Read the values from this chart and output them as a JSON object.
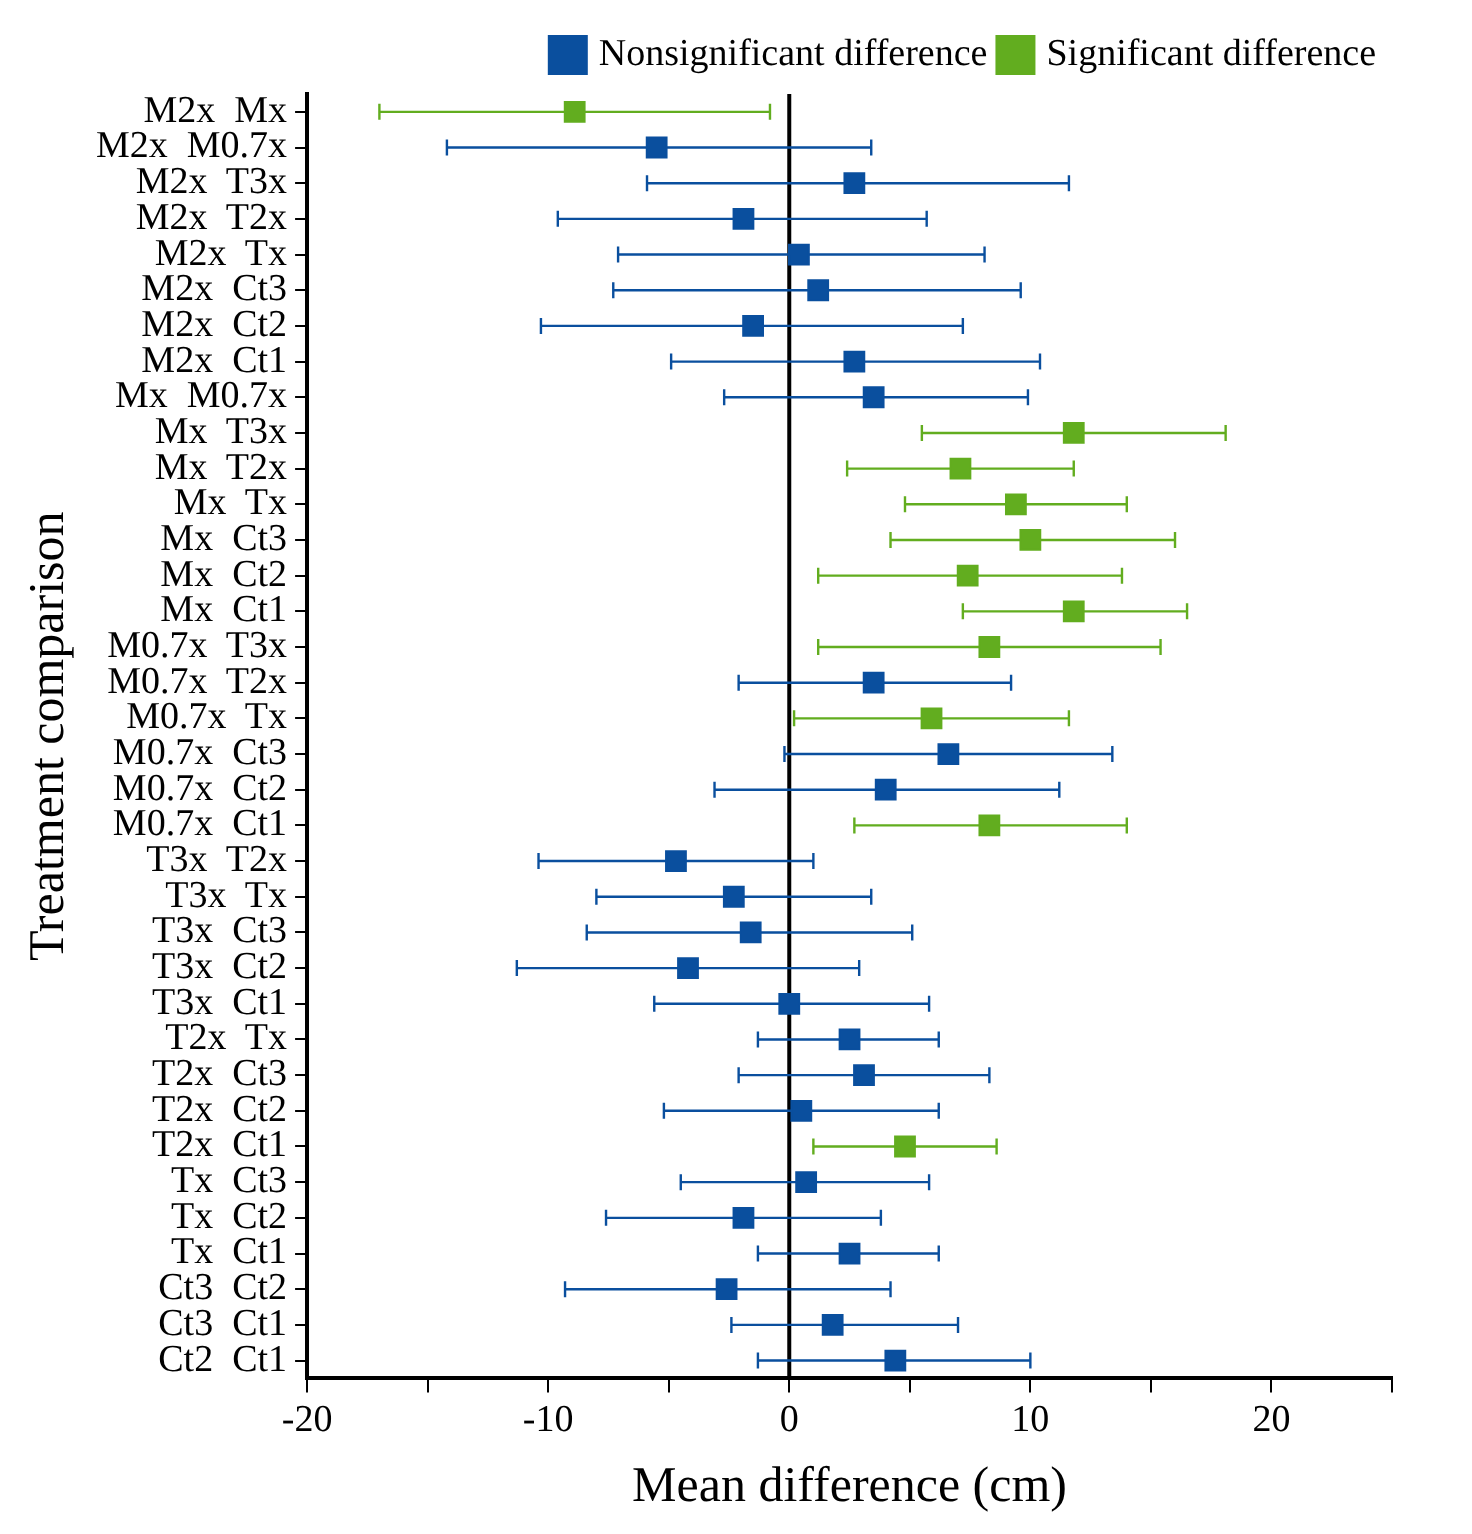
{
  "chart_data": {
    "type": "scatter",
    "xlabel": "Mean difference (cm)",
    "ylabel": "Treatment comparison",
    "categories": [
      "M2x  Mx",
      "M2x  M0.7x",
      "M2x  T3x",
      "M2x  T2x",
      "M2x  Tx",
      "M2x  Ct3",
      "M2x  Ct2",
      "M2x  Ct1",
      "Mx  M0.7x",
      "Mx  T3x",
      "Mx  T2x",
      "Mx  Tx",
      "Mx  Ct3",
      "Mx  Ct2",
      "Mx  Ct1",
      "M0.7x  T3x",
      "M0.7x  T2x",
      "M0.7x  Tx",
      "M0.7x  Ct3",
      "M0.7x  Ct2",
      "M0.7x  Ct1",
      "T3x  T2x",
      "T3x  Tx",
      "T3x  Ct3",
      "T3x  Ct2",
      "T3x  Ct1",
      "T2x  Tx",
      "T2x  Ct3",
      "T2x  Ct2",
      "T2x  Ct1",
      "Tx  Ct3",
      "Tx  Ct2",
      "Tx  Ct1",
      "Ct3  Ct2",
      "Ct3  Ct1",
      "Ct2  Ct1"
    ],
    "series": [
      {
        "name": "Nonsignificant difference",
        "color": "#0a4f9e",
        "values": [
          null,
          -5.5,
          2.7,
          -1.9,
          0.4,
          1.2,
          -1.5,
          2.7,
          3.5,
          null,
          null,
          null,
          null,
          null,
          null,
          null,
          3.5,
          null,
          6.6,
          4.0,
          null,
          -4.7,
          -2.3,
          -1.6,
          -4.2,
          0.0,
          2.5,
          3.1,
          0.5,
          null,
          0.7,
          -1.9,
          2.5,
          -2.6,
          1.8,
          4.4
        ],
        "errors": [
          null,
          [
            -14.2,
            3.4
          ],
          [
            -5.9,
            11.6
          ],
          [
            -9.6,
            5.7
          ],
          [
            -7.1,
            8.1
          ],
          [
            -7.3,
            9.6
          ],
          [
            -10.3,
            7.2
          ],
          [
            -4.9,
            10.4
          ],
          [
            -2.7,
            9.9
          ],
          null,
          null,
          null,
          null,
          null,
          null,
          null,
          [
            -2.1,
            9.2
          ],
          null,
          [
            -0.2,
            13.4
          ],
          [
            -3.1,
            11.2
          ],
          null,
          [
            -10.4,
            1.0
          ],
          [
            -8.0,
            3.4
          ],
          [
            -8.4,
            5.1
          ],
          [
            -11.3,
            2.9
          ],
          [
            -5.6,
            5.8
          ],
          [
            -1.3,
            6.2
          ],
          [
            -2.1,
            8.3
          ],
          [
            -5.2,
            6.2
          ],
          null,
          [
            -4.5,
            5.8
          ],
          [
            -7.6,
            3.8
          ],
          [
            -1.3,
            6.2
          ],
          [
            -9.3,
            4.2
          ],
          [
            -2.4,
            7.0
          ],
          [
            -1.3,
            10.0
          ]
        ]
      },
      {
        "name": "Significant difference",
        "color": "#62ad1f",
        "values": [
          -8.9,
          null,
          null,
          null,
          null,
          null,
          null,
          null,
          null,
          11.8,
          7.1,
          9.4,
          10.0,
          7.4,
          11.8,
          8.3,
          null,
          5.9,
          null,
          null,
          8.3,
          null,
          null,
          null,
          null,
          null,
          null,
          null,
          null,
          4.8,
          null,
          null,
          null,
          null,
          null,
          null
        ],
        "errors": [
          [
            -17.0,
            -0.8
          ],
          null,
          null,
          null,
          null,
          null,
          null,
          null,
          null,
          [
            5.5,
            18.1
          ],
          [
            2.4,
            11.8
          ],
          [
            4.8,
            14.0
          ],
          [
            4.2,
            16.0
          ],
          [
            1.2,
            13.8
          ],
          [
            7.2,
            16.5
          ],
          [
            1.2,
            15.4
          ],
          null,
          [
            0.2,
            11.6
          ],
          null,
          null,
          [
            2.7,
            14.0
          ],
          null,
          null,
          null,
          null,
          null,
          null,
          null,
          null,
          [
            1.0,
            8.6
          ],
          null,
          null,
          null,
          null,
          null,
          null
        ]
      }
    ],
    "xlim": [
      -20,
      25
    ],
    "xticks": [
      -20,
      {
        "value": -15,
        "label": null
      },
      -10,
      {
        "value": -5,
        "label": null
      },
      0,
      {
        "value": 5,
        "label": null
      },
      10,
      {
        "value": 15,
        "label": null
      },
      20,
      {
        "value": 25,
        "label": null
      }
    ],
    "ref_lines": [
      {
        "axis": "x",
        "value": 0,
        "color": "#000000"
      }
    ],
    "orientation": "horizontal",
    "grid": false,
    "legend": "top right",
    "marker": "square"
  }
}
